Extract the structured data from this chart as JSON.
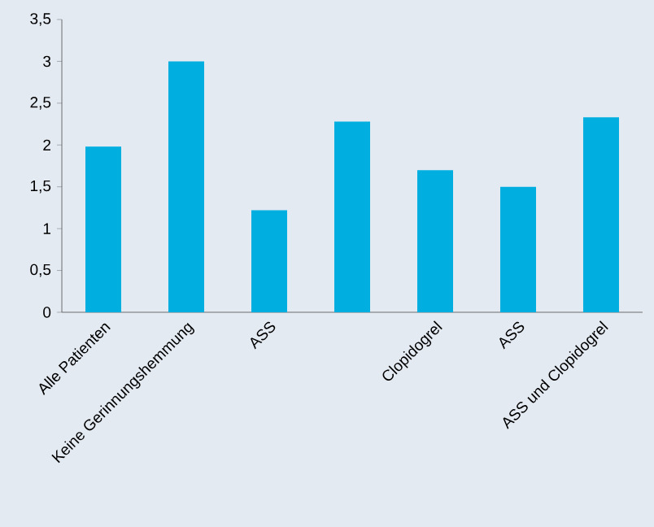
{
  "chart_data": {
    "type": "bar",
    "categories": [
      "Alle Patienten",
      "Keine Gerinnungshemmung",
      "ASS",
      null,
      "Clopidogrel",
      "ASS",
      "ASS und Clopidogrel"
    ],
    "values": [
      1.98,
      3.0,
      1.22,
      2.28,
      1.7,
      1.5,
      2.33
    ],
    "color": "#00aee0",
    "ylim": [
      0,
      3.5
    ],
    "yticks": [
      0,
      {
        "value": 0.5,
        "label": "0,5"
      },
      1,
      {
        "value": 1.5,
        "label": "1,5"
      },
      2,
      {
        "value": 2.5,
        "label": "2,5"
      },
      3,
      {
        "value": 3.5,
        "label": "3,5"
      }
    ]
  }
}
